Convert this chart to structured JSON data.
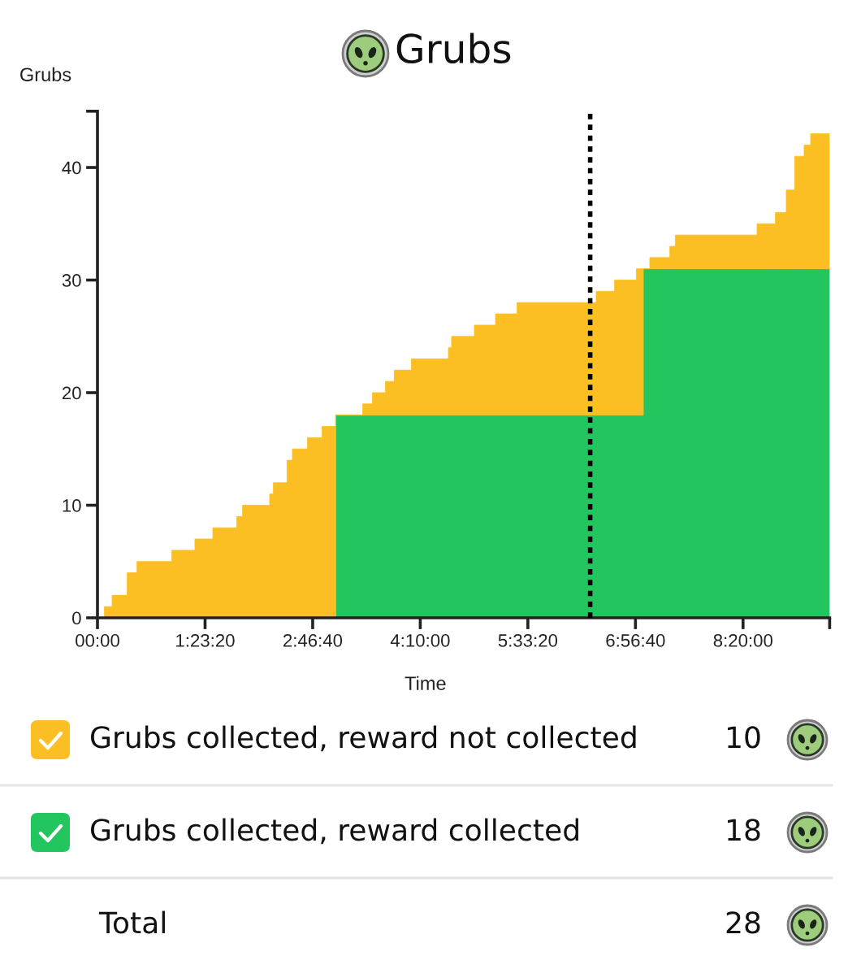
{
  "chart_data": {
    "type": "area",
    "title": "Grubs",
    "xlabel": "Time",
    "ylabel": "Grubs",
    "stacked": true,
    "legend": "bottom",
    "x": [
      0,
      0.09,
      0.09,
      0.189,
      0.189,
      0.384,
      0.384,
      0.51,
      0.51,
      0.958,
      0.958,
      1.258,
      1.258,
      1.489,
      1.489,
      1.797,
      1.797,
      1.873,
      1.873,
      2.223,
      2.223,
      2.271,
      2.271,
      2.447,
      2.447,
      2.516,
      2.516,
      2.711,
      2.711,
      2.9,
      2.9,
      3.076,
      3.076,
      3.424,
      3.424,
      3.55,
      3.55,
      3.718,
      3.718,
      3.831,
      3.831,
      4.053,
      4.053,
      4.53,
      4.53,
      4.571,
      4.571,
      4.865,
      4.865,
      5.138,
      5.138,
      5.417,
      5.417,
      6.438,
      6.438,
      6.675,
      6.675,
      6.956,
      6.956,
      7.046,
      7.046,
      7.13,
      7.13,
      7.388,
      7.388,
      7.459,
      7.459,
      8.514,
      8.514,
      8.751,
      8.751,
      8.891,
      8.891,
      9.0,
      9.0,
      9.122,
      9.122,
      9.206,
      9.206,
      9.451
    ],
    "series": [
      {
        "name": "Grubs collected, reward collected",
        "color": "#22c55e",
        "values": [
          0,
          0,
          0,
          0,
          0,
          0,
          0,
          0,
          0,
          0,
          0,
          0,
          0,
          0,
          0,
          0,
          0,
          0,
          0,
          0,
          0,
          0,
          0,
          0,
          0,
          0,
          0,
          0,
          0,
          0,
          0,
          0,
          18,
          18,
          18,
          18,
          18,
          18,
          18,
          18,
          18,
          18,
          18,
          18,
          18,
          18,
          18,
          18,
          18,
          18,
          18,
          18,
          18,
          18,
          18,
          18,
          18,
          18,
          18,
          18,
          31,
          31,
          31,
          31,
          31,
          31,
          31,
          31,
          31,
          31,
          31,
          31,
          31,
          31,
          31,
          31,
          31,
          31,
          31,
          31
        ]
      },
      {
        "name": "Grubs collected, reward not collected",
        "color": "#fbbf24",
        "values": [
          0,
          0,
          1,
          1,
          2,
          2,
          4,
          4,
          5,
          5,
          6,
          6,
          7,
          7,
          8,
          8,
          9,
          9,
          10,
          10,
          11,
          11,
          12,
          12,
          14,
          14,
          15,
          15,
          16,
          16,
          17,
          17,
          0,
          0,
          1,
          1,
          2,
          2,
          3,
          3,
          4,
          4,
          5,
          5,
          6,
          6,
          7,
          7,
          8,
          8,
          9,
          9,
          10,
          10,
          11,
          11,
          12,
          12,
          13,
          13,
          0,
          0,
          1,
          1,
          2,
          2,
          3,
          3,
          4,
          4,
          5,
          5,
          7,
          7,
          10,
          10,
          11,
          11,
          12,
          12
        ]
      }
    ],
    "xlim": [
      0,
      9.451
    ],
    "xticks": [
      {
        "value": 0,
        "label": "00:00"
      },
      {
        "value": 1.3889,
        "label": "1:23:20"
      },
      {
        "value": 2.7778,
        "label": "2:46:40"
      },
      {
        "value": 4.1667,
        "label": "4:10:00"
      },
      {
        "value": 5.5556,
        "label": "5:33:20"
      },
      {
        "value": 6.9444,
        "label": "6:56:40"
      },
      {
        "value": 8.3333,
        "label": "8:20:00"
      },
      {
        "value": 9.451,
        "label": null
      }
    ],
    "ylim": [
      0,
      45
    ],
    "yticks": [
      0,
      10,
      20,
      30,
      40,
      {
        "value": 45,
        "label": null
      }
    ],
    "ref_lines": [
      {
        "axis": "x",
        "value": 6.36,
        "color": "#000000",
        "line_style": "dotted"
      }
    ],
    "annotations": [
      "10",
      "18",
      "Total",
      "28"
    ]
  }
}
